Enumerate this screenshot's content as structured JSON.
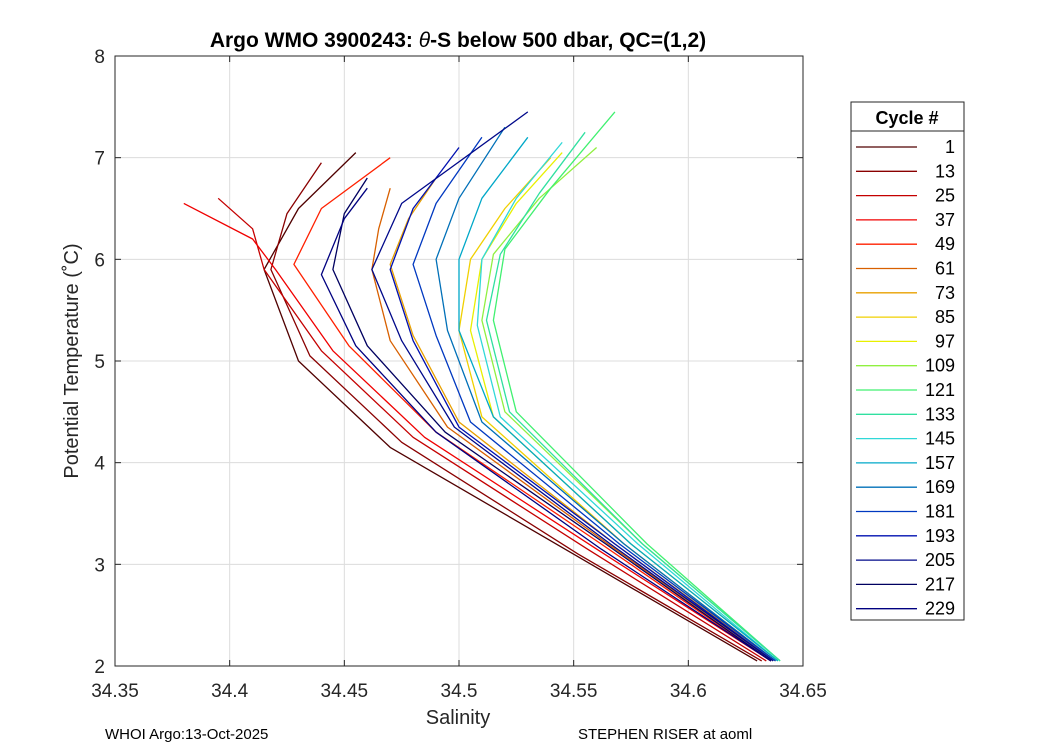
{
  "chart_data": {
    "type": "line",
    "title_prefix": "Argo WMO 3900243: ",
    "title_symbol": "θ",
    "title_suffix": "-S below 500 dbar,  QC=(1,2)",
    "xlabel": "Salinity",
    "ylabel": "Potential Temperature (˚C)",
    "xlim": [
      34.35,
      34.65
    ],
    "ylim": [
      2,
      8
    ],
    "xticks": [
      34.35,
      34.4,
      34.45,
      34.5,
      34.55,
      34.6,
      34.65
    ],
    "xtick_labels": [
      "34.35",
      "34.4",
      "34.45",
      "34.5",
      "34.55",
      "34.6",
      "34.65"
    ],
    "yticks": [
      2,
      3,
      4,
      5,
      6,
      7,
      8
    ],
    "ytick_labels": [
      "2",
      "3",
      "4",
      "5",
      "6",
      "7",
      "8"
    ],
    "grid": true,
    "legend_title": "Cycle #",
    "legend_position": "right-outside",
    "legend": [
      {
        "label": "1",
        "color": "#500000"
      },
      {
        "label": "13",
        "color": "#8a0000"
      },
      {
        "label": "25",
        "color": "#c40000"
      },
      {
        "label": "37",
        "color": "#f00000"
      },
      {
        "label": "49",
        "color": "#ff2000"
      },
      {
        "label": "61",
        "color": "#d86000"
      },
      {
        "label": "73",
        "color": "#e8a000"
      },
      {
        "label": "85",
        "color": "#f0d000"
      },
      {
        "label": "97",
        "color": "#e8f000"
      },
      {
        "label": "109",
        "color": "#90f040"
      },
      {
        "label": "121",
        "color": "#40f070"
      },
      {
        "label": "133",
        "color": "#30e0a0"
      },
      {
        "label": "145",
        "color": "#30d8d8"
      },
      {
        "label": "157",
        "color": "#00a8c8"
      },
      {
        "label": "169",
        "color": "#0070b8"
      },
      {
        "label": "181",
        "color": "#0038c0"
      },
      {
        "label": "193",
        "color": "#0010b0"
      },
      {
        "label": "205",
        "color": "#00088a"
      },
      {
        "label": "217",
        "color": "#000060"
      },
      {
        "label": "229",
        "color": "#000080"
      }
    ],
    "series": [
      {
        "name": "1",
        "color": "#500000",
        "salinity": [
          34.63,
          34.55,
          34.47,
          34.43,
          34.415,
          34.43,
          34.455
        ],
        "theta": [
          2.05,
          3.1,
          4.15,
          5.0,
          5.9,
          6.5,
          7.05
        ]
      },
      {
        "name": "13",
        "color": "#8a0000",
        "salinity": [
          34.632,
          34.552,
          34.475,
          34.435,
          34.418,
          34.425,
          34.44
        ],
        "theta": [
          2.05,
          3.1,
          4.2,
          5.05,
          5.9,
          6.45,
          6.95
        ]
      },
      {
        "name": "25",
        "color": "#c40000",
        "salinity": [
          34.634,
          34.556,
          34.48,
          34.44,
          34.415,
          34.41,
          34.395
        ],
        "theta": [
          2.05,
          3.15,
          4.25,
          5.1,
          5.9,
          6.3,
          6.6
        ]
      },
      {
        "name": "37",
        "color": "#f00000",
        "salinity": [
          34.636,
          34.56,
          34.485,
          34.445,
          34.42,
          34.41,
          34.38
        ],
        "theta": [
          2.05,
          3.15,
          4.25,
          5.1,
          5.9,
          6.2,
          6.55
        ]
      },
      {
        "name": "49",
        "color": "#ff2000",
        "salinity": [
          34.636,
          34.562,
          34.49,
          34.452,
          34.428,
          34.44,
          34.47
        ],
        "theta": [
          2.05,
          3.2,
          4.3,
          5.15,
          5.95,
          6.5,
          7.0
        ]
      },
      {
        "name": "61",
        "color": "#d86000",
        "salinity": [
          34.637,
          34.565,
          34.495,
          34.47,
          34.462,
          34.465,
          34.47
        ],
        "theta": [
          2.05,
          3.2,
          4.35,
          5.2,
          5.9,
          6.3,
          6.7
        ]
      },
      {
        "name": "73",
        "color": "#e8a000",
        "salinity": [
          34.638,
          34.568,
          34.5,
          34.48,
          34.47,
          34.478,
          34.49
        ],
        "theta": [
          2.05,
          3.2,
          4.4,
          5.25,
          5.95,
          6.4,
          6.8
        ]
      },
      {
        "name": "85",
        "color": "#f0d000",
        "salinity": [
          34.638,
          34.572,
          34.51,
          34.5,
          34.505,
          34.52,
          34.54
        ],
        "theta": [
          2.05,
          3.2,
          4.45,
          5.3,
          6.0,
          6.5,
          7.0
        ]
      },
      {
        "name": "97",
        "color": "#e8f000",
        "salinity": [
          34.639,
          34.575,
          34.515,
          34.505,
          34.51,
          34.525,
          34.545
        ],
        "theta": [
          2.05,
          3.2,
          4.45,
          5.3,
          6.0,
          6.55,
          7.05
        ]
      },
      {
        "name": "109",
        "color": "#90f040",
        "salinity": [
          34.64,
          34.58,
          34.52,
          34.51,
          34.515,
          34.535,
          34.56
        ],
        "theta": [
          2.05,
          3.2,
          4.5,
          5.4,
          6.05,
          6.6,
          7.1
        ]
      },
      {
        "name": "121",
        "color": "#40f070",
        "salinity": [
          34.64,
          34.582,
          34.525,
          34.515,
          34.52,
          34.54,
          34.568
        ],
        "theta": [
          2.05,
          3.2,
          4.5,
          5.4,
          6.1,
          6.7,
          7.45
        ]
      },
      {
        "name": "133",
        "color": "#30e0a0",
        "salinity": [
          34.64,
          34.58,
          34.522,
          34.512,
          34.518,
          34.535,
          34.555
        ],
        "theta": [
          2.05,
          3.2,
          4.5,
          5.4,
          6.05,
          6.65,
          7.25
        ]
      },
      {
        "name": "145",
        "color": "#30d8d8",
        "salinity": [
          34.639,
          34.578,
          34.518,
          34.508,
          34.51,
          34.525,
          34.545
        ],
        "theta": [
          2.05,
          3.2,
          4.45,
          5.35,
          6.0,
          6.6,
          7.15
        ]
      },
      {
        "name": "157",
        "color": "#00a8c8",
        "salinity": [
          34.639,
          34.575,
          34.515,
          34.5,
          34.5,
          34.51,
          34.53
        ],
        "theta": [
          2.05,
          3.2,
          4.45,
          5.3,
          6.0,
          6.6,
          7.2
        ]
      },
      {
        "name": "169",
        "color": "#0070b8",
        "salinity": [
          34.638,
          34.572,
          34.51,
          34.495,
          34.49,
          34.5,
          34.52
        ],
        "theta": [
          2.05,
          3.2,
          4.4,
          5.3,
          6.0,
          6.6,
          7.3
        ]
      },
      {
        "name": "181",
        "color": "#0038c0",
        "salinity": [
          34.638,
          34.57,
          34.505,
          34.49,
          34.48,
          34.49,
          34.51
        ],
        "theta": [
          2.05,
          3.2,
          4.4,
          5.25,
          5.95,
          6.55,
          7.2
        ]
      },
      {
        "name": "193",
        "color": "#0010b0",
        "salinity": [
          34.637,
          34.568,
          34.5,
          34.48,
          34.47,
          34.48,
          34.5
        ],
        "theta": [
          2.05,
          3.2,
          4.35,
          5.2,
          5.9,
          6.5,
          7.1
        ]
      },
      {
        "name": "205",
        "color": "#00088a",
        "salinity": [
          34.637,
          34.566,
          34.498,
          34.475,
          34.462,
          34.475,
          34.53
        ],
        "theta": [
          2.05,
          3.2,
          4.35,
          5.2,
          5.9,
          6.55,
          7.45
        ]
      },
      {
        "name": "217",
        "color": "#000060",
        "salinity": [
          34.636,
          34.564,
          34.494,
          34.46,
          34.445,
          34.45,
          34.46
        ],
        "theta": [
          2.05,
          3.2,
          4.3,
          5.15,
          5.9,
          6.45,
          6.8
        ]
      },
      {
        "name": "229",
        "color": "#000080",
        "salinity": [
          34.636,
          34.562,
          34.49,
          34.455,
          34.44,
          34.45,
          34.46
        ],
        "theta": [
          2.05,
          3.15,
          4.3,
          5.15,
          5.85,
          6.4,
          6.7
        ]
      }
    ]
  },
  "footer": {
    "left": "WHOI Argo:13-Oct-2025",
    "right": "STEPHEN RISER at aoml"
  }
}
